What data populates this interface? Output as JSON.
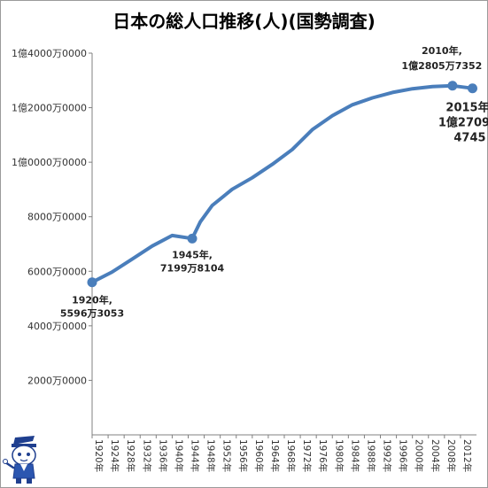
{
  "chart_data": {
    "type": "line",
    "title": "日本の総人口推移(人)(国勢調査)",
    "xlabel": "",
    "ylabel": "",
    "ylim": [
      0,
      140000000
    ],
    "yticks": [
      {
        "value": 20000000,
        "label": "2000万0000"
      },
      {
        "value": 40000000,
        "label": "4000万0000"
      },
      {
        "value": 60000000,
        "label": "6000万0000"
      },
      {
        "value": 80000000,
        "label": "8000万0000"
      },
      {
        "value": 100000000,
        "label": "1億0000万0000"
      },
      {
        "value": 120000000,
        "label": "1億2000万0000"
      },
      {
        "value": 140000000,
        "label": "1億4000万0000"
      }
    ],
    "xrange": [
      1920,
      2016
    ],
    "xticks": [
      "1920年",
      "1924年",
      "1928年",
      "1932年",
      "1936年",
      "1940年",
      "1944年",
      "1948年",
      "1952年",
      "1956年",
      "1960年",
      "1964年",
      "1968年",
      "1972年",
      "1976年",
      "1980年",
      "1984年",
      "1988年",
      "1992年",
      "1996年",
      "2000年",
      "2004年",
      "2008年",
      "2012年"
    ],
    "grid": false,
    "color": "#4a7ebb",
    "series": [
      {
        "x": [
          1920,
          1925,
          1930,
          1935,
          1940,
          1945,
          1947,
          1950,
          1955,
          1960,
          1965,
          1970,
          1975,
          1980,
          1985,
          1990,
          1995,
          2000,
          2005,
          2010,
          2015
        ],
        "values": [
          55963053,
          59736822,
          64450005,
          69254148,
          73114308,
          71998104,
          78101473,
          84114574,
          90076594,
          94301623,
          99209137,
          104665171,
          111939643,
          117060396,
          121048923,
          123611167,
          125570246,
          126925843,
          127767994,
          128057352,
          127094745
        ]
      }
    ],
    "annotations": [
      {
        "year": 1920,
        "lines": [
          "1920年,",
          "5596万3053"
        ]
      },
      {
        "year": 1945,
        "lines": [
          "1945年,",
          "7199万8104"
        ]
      },
      {
        "year": 2010,
        "lines": [
          "2010年,",
          "1億2805万7352"
        ]
      },
      {
        "year": 2015,
        "lines": [
          "2015年,",
          "1億2709万",
          "4745"
        ]
      }
    ]
  }
}
